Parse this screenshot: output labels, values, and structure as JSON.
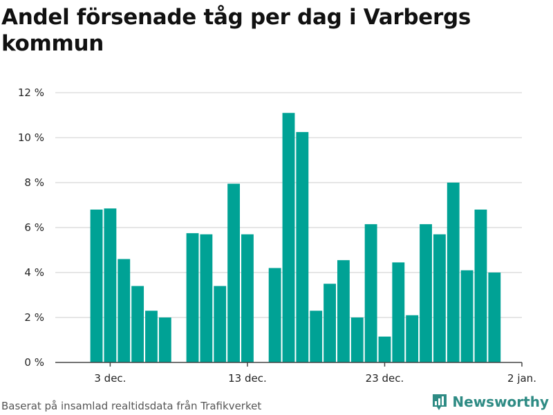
{
  "chart_data": {
    "type": "bar",
    "title": "Andel försenade tåg per dag i Varbergs kommun",
    "xlabel": "",
    "ylabel": "",
    "x_axis": {
      "start": "2023-11-29",
      "end": "2024-01-02",
      "ticks": [
        {
          "date": "2023-12-03",
          "label": "3 dec."
        },
        {
          "date": "2023-12-13",
          "label": "13 dec."
        },
        {
          "date": "2023-12-23",
          "label": "23 dec."
        },
        {
          "date": "2024-01-02",
          "label": "2 jan."
        }
      ]
    },
    "y_axis": {
      "min": 0,
      "max": 12,
      "ticks": [
        0,
        2,
        4,
        6,
        8,
        10,
        12
      ],
      "tick_labels": [
        "0 %",
        "2 %",
        "4 %",
        "6 %",
        "8 %",
        "10 %",
        "12 %"
      ]
    },
    "grid": true,
    "bar_color": "#00a295",
    "data": [
      {
        "date": "2023-12-02",
        "value": 6.8
      },
      {
        "date": "2023-12-03",
        "value": 6.85
      },
      {
        "date": "2023-12-04",
        "value": 4.6
      },
      {
        "date": "2023-12-05",
        "value": 3.4
      },
      {
        "date": "2023-12-06",
        "value": 2.3
      },
      {
        "date": "2023-12-07",
        "value": 2.0
      },
      {
        "date": "2023-12-09",
        "value": 5.75
      },
      {
        "date": "2023-12-10",
        "value": 5.7
      },
      {
        "date": "2023-12-11",
        "value": 3.4
      },
      {
        "date": "2023-12-12",
        "value": 7.95
      },
      {
        "date": "2023-12-13",
        "value": 5.7
      },
      {
        "date": "2023-12-15",
        "value": 4.2
      },
      {
        "date": "2023-12-16",
        "value": 11.1
      },
      {
        "date": "2023-12-17",
        "value": 10.25
      },
      {
        "date": "2023-12-18",
        "value": 2.3
      },
      {
        "date": "2023-12-19",
        "value": 3.5
      },
      {
        "date": "2023-12-20",
        "value": 4.55
      },
      {
        "date": "2023-12-21",
        "value": 2.0
      },
      {
        "date": "2023-12-22",
        "value": 6.15
      },
      {
        "date": "2023-12-23",
        "value": 1.15
      },
      {
        "date": "2023-12-24",
        "value": 4.45
      },
      {
        "date": "2023-12-25",
        "value": 2.1
      },
      {
        "date": "2023-12-26",
        "value": 6.15
      },
      {
        "date": "2023-12-27",
        "value": 5.7
      },
      {
        "date": "2023-12-28",
        "value": 8.0
      },
      {
        "date": "2023-12-29",
        "value": 4.1
      },
      {
        "date": "2023-12-30",
        "value": 6.8
      },
      {
        "date": "2023-12-31",
        "value": 4.0
      }
    ]
  },
  "footer": {
    "source": "Baserat på insamlad realtidsdata från Trafikverket",
    "brand": "Newsworthy",
    "brand_icon": "newsworthy-logo-icon",
    "brand_color": "#2e8b84"
  }
}
